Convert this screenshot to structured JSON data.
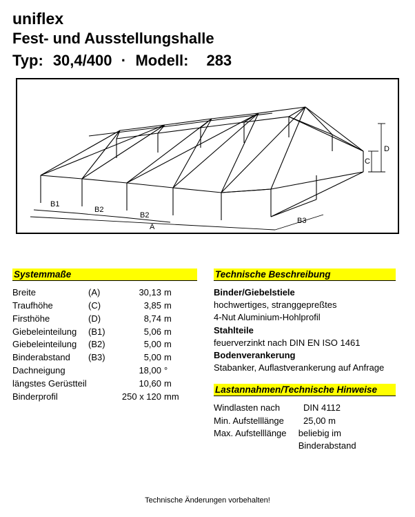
{
  "header": {
    "brand": "uniflex",
    "subtitle": "Fest- und Ausstellungshalle",
    "typ_label": "Typ:",
    "typ_value": "30,4/400",
    "modell_label": "Modell:",
    "modell_value": "283"
  },
  "diagram": {
    "type": "isometric-structure",
    "stroke": "#000000",
    "stroke_width": 1.2,
    "labels": [
      "B1",
      "B2",
      "B2",
      "A",
      "B3",
      "C",
      "D"
    ],
    "label_fontsize": 11
  },
  "systemmasse": {
    "heading": "Systemmaße",
    "rows": [
      {
        "label": "Breite",
        "sym": "(A)",
        "val": "30,13",
        "unit": "m"
      },
      {
        "label": "Traufhöhe",
        "sym": "(C)",
        "val": "3,85",
        "unit": "m"
      },
      {
        "label": "Firsthöhe",
        "sym": "(D)",
        "val": "8,74",
        "unit": "m"
      },
      {
        "label": "Giebeleinteilung",
        "sym": "(B1)",
        "val": "5,06",
        "unit": "m"
      },
      {
        "label": "Giebeleinteilung",
        "sym": "(B2)",
        "val": "5,00",
        "unit": "m"
      },
      {
        "label": "Binderabstand",
        "sym": "(B3)",
        "val": "5,00",
        "unit": "m"
      },
      {
        "label": "Dachneigung",
        "sym": "",
        "val": "18,00",
        "unit": "°"
      },
      {
        "label": "längstes Gerüstteil",
        "sym": "",
        "val": "10,60",
        "unit": "m"
      },
      {
        "label": "Binderprofil",
        "sym": "",
        "val": "250 x 120",
        "unit": "mm"
      }
    ]
  },
  "technische": {
    "heading": "Technische Beschreibung",
    "groups": [
      {
        "title": "Binder/Giebelstiele",
        "lines": [
          "hochwertiges, stranggepreßtes",
          "4-Nut Aluminium-Hohlprofil"
        ]
      },
      {
        "title": "Stahlteile",
        "lines": [
          "feuerverzinkt nach DIN EN ISO 1461"
        ]
      },
      {
        "title": "Bodenverankerung",
        "lines": [
          "Stabanker, Auflastverankerung auf Anfrage"
        ]
      }
    ]
  },
  "lastannahmen": {
    "heading": "Lastannahmen/Technische Hinweise",
    "rows": [
      {
        "label": "Windlasten nach",
        "val": "DIN 4112"
      },
      {
        "label": "Min. Aufstelllänge",
        "val": "25,00 m"
      },
      {
        "label": "Max. Aufstelllänge",
        "val": "beliebig im Binderabstand"
      }
    ]
  },
  "footer": "Technische Änderungen vorbehalten!"
}
